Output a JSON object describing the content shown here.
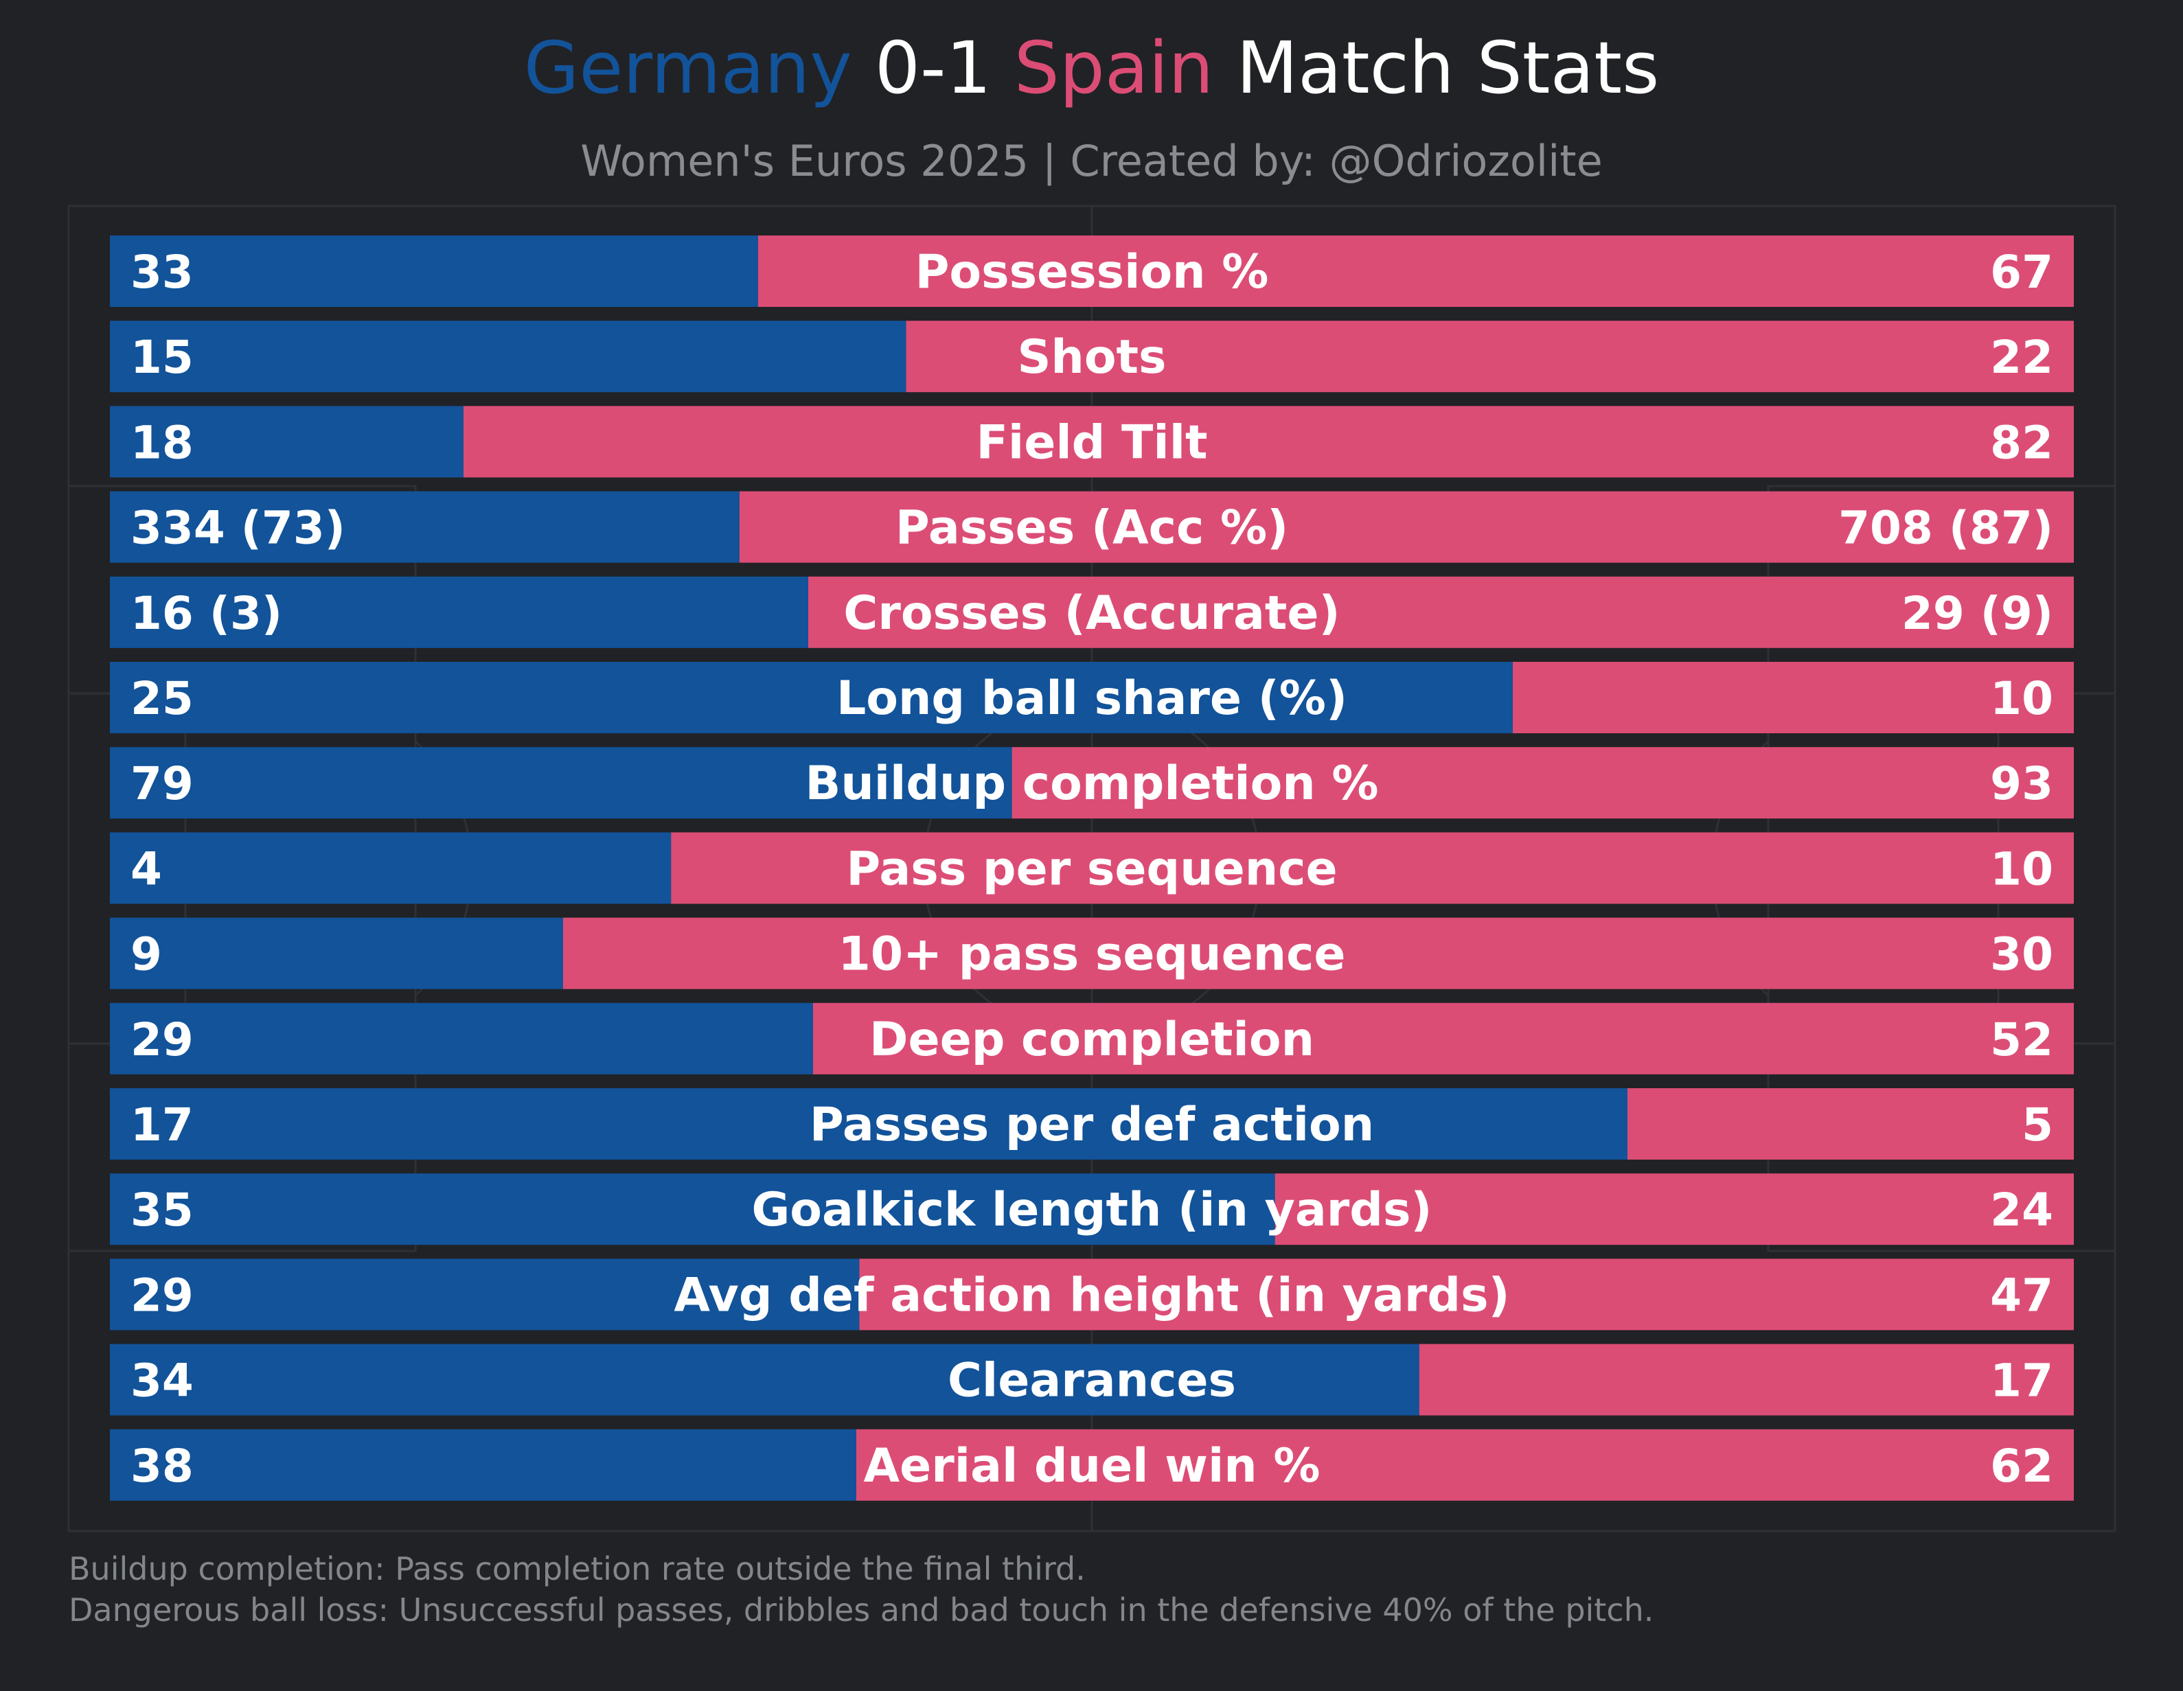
{
  "header": {
    "team_home": "Germany",
    "score": "0-1",
    "team_away": "Spain",
    "title_suffix": "Match Stats",
    "subtitle": "Women's Euros 2025 | Created by: @Odriozolite"
  },
  "colors": {
    "home": "#12539a",
    "away": "#dc4d76",
    "background": "#212226",
    "pitch_lines": "#2e3036",
    "text": "#ffffff",
    "muted_text": "#8a8c91"
  },
  "chart_data": {
    "type": "bar",
    "orientation": "horizontal-stacked-share",
    "title": "Germany 0-1 Spain Match Stats",
    "subtitle": "Women's Euros 2025 | Created by: @Odriozolite",
    "series": [
      {
        "name": "Germany",
        "color": "#12539a"
      },
      {
        "name": "Spain",
        "color": "#dc4d76"
      }
    ],
    "rows": [
      {
        "label": "Possession %",
        "home": 33,
        "away": 67,
        "home_label": "33",
        "away_label": "67"
      },
      {
        "label": "Shots",
        "home": 15,
        "away": 22,
        "home_label": "15",
        "away_label": "22"
      },
      {
        "label": "Field Tilt",
        "home": 18,
        "away": 82,
        "home_label": "18",
        "away_label": "82"
      },
      {
        "label": "Passes (Acc %)",
        "home": 334,
        "away": 708,
        "home_label": "334 (73)",
        "away_label": "708 (87)"
      },
      {
        "label": "Crosses (Accurate)",
        "home": 16,
        "away": 29,
        "home_label": "16 (3)",
        "away_label": "29 (9)"
      },
      {
        "label": "Long ball share (%)",
        "home": 25,
        "away": 10,
        "home_label": "25",
        "away_label": "10"
      },
      {
        "label": "Buildup completion %",
        "home": 79,
        "away": 93,
        "home_label": "79",
        "away_label": "93"
      },
      {
        "label": "Pass per sequence",
        "home": 4,
        "away": 10,
        "home_label": "4",
        "away_label": "10"
      },
      {
        "label": "10+ pass sequence",
        "home": 9,
        "away": 30,
        "home_label": "9",
        "away_label": "30"
      },
      {
        "label": "Deep completion",
        "home": 29,
        "away": 52,
        "home_label": "29",
        "away_label": "52"
      },
      {
        "label": "Passes per def action",
        "home": 17,
        "away": 5,
        "home_label": "17",
        "away_label": "5"
      },
      {
        "label": "Goalkick length (in yards)",
        "home": 35,
        "away": 24,
        "home_label": "35",
        "away_label": "24"
      },
      {
        "label": "Avg def action height (in yards)",
        "home": 29,
        "away": 47,
        "home_label": "29",
        "away_label": "47"
      },
      {
        "label": "Clearances",
        "home": 34,
        "away": 17,
        "home_label": "34",
        "away_label": "17"
      },
      {
        "label": "Aerial duel win %",
        "home": 38,
        "away": 62,
        "home_label": "38",
        "away_label": "62"
      }
    ]
  },
  "footnotes": [
    "Buildup completion: Pass completion rate outside the final third.",
    "Dangerous ball loss: Unsuccessful passes, dribbles and bad touch in the defensive 40% of the pitch."
  ]
}
